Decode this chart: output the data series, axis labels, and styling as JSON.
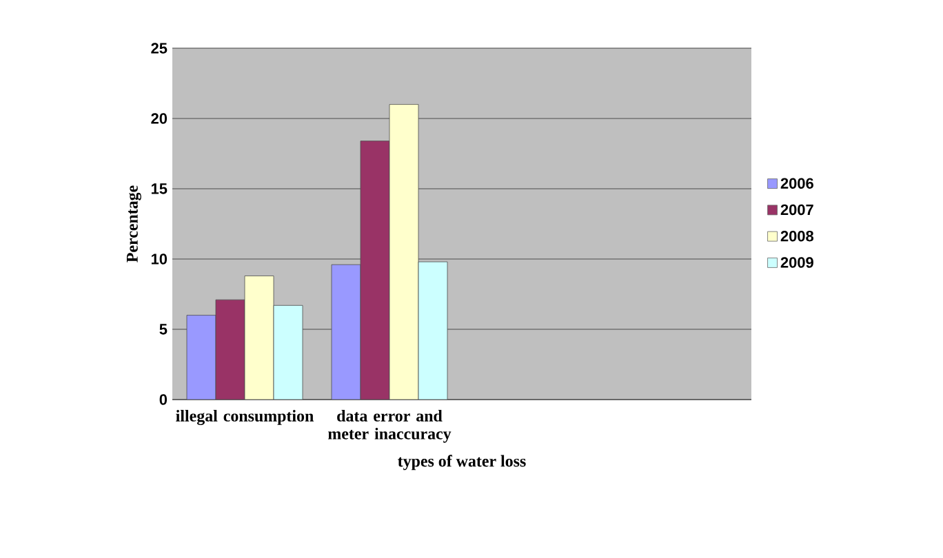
{
  "chart_data": {
    "type": "bar",
    "xlabel": "types of water loss",
    "ylabel": "Percentage",
    "categories": [
      "illegal consumption",
      "data error and meter inaccuracy",
      null,
      null
    ],
    "series": [
      {
        "name": "2006",
        "color": "#9999ff",
        "values": [
          6.0,
          9.6,
          null,
          null
        ]
      },
      {
        "name": "2007",
        "color": "#993366",
        "values": [
          7.1,
          18.4,
          null,
          null
        ]
      },
      {
        "name": "2008",
        "color": "#ffffcc",
        "values": [
          8.8,
          21.0,
          null,
          null
        ]
      },
      {
        "name": "2009",
        "color": "#ccffff",
        "values": [
          6.7,
          9.8,
          null,
          null
        ]
      }
    ],
    "ylim": [
      0,
      25
    ],
    "yticks": [
      0,
      5,
      10,
      15,
      20,
      25
    ],
    "grid": "y",
    "legend": "right"
  }
}
